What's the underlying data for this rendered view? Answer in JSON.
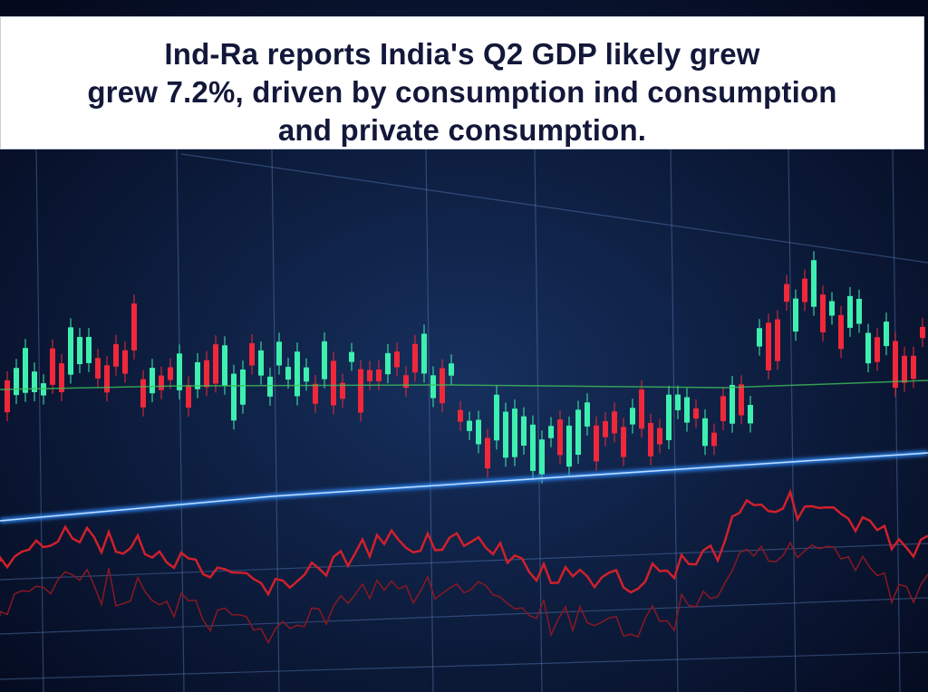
{
  "headline": {
    "line1": "Ind-Ra reports India's Q2 GDP likely grew",
    "line2": "grew 7.2%, driven by consumption ind consumption",
    "line3": "and private consumption."
  },
  "colors": {
    "background": "#07122e",
    "banner": "#ffffff",
    "text": "#13183a",
    "candle_up": "#3df0b0",
    "candle_down": "#f0283a",
    "trend_blue": "#2f8bff",
    "trend_red": "#d0202c"
  }
}
